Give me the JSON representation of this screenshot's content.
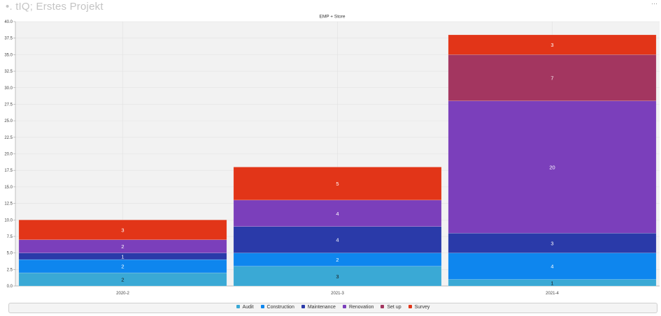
{
  "window": {
    "title": "tIQ; Erstes Projekt"
  },
  "chart_data": {
    "type": "bar",
    "stacked": true,
    "title": "EMP + Store",
    "categories": [
      "2020-2",
      "2021-3",
      "2021-4"
    ],
    "ylim": [
      0,
      40
    ],
    "yticks": [
      "0.0",
      "2.5",
      "5.0",
      "7.5",
      "10.0",
      "12.5",
      "15.0",
      "17.5",
      "20.0",
      "22.5",
      "25.0",
      "27.5",
      "30.0",
      "32.5",
      "35.0",
      "37.5",
      "40.0"
    ],
    "grid": true,
    "legend_position": "bottom",
    "series": [
      {
        "name": "Audit",
        "color": "#3aa9d5",
        "values": [
          2,
          3,
          1
        ]
      },
      {
        "name": "Construction",
        "color": "#0e86ee",
        "values": [
          2,
          2,
          4
        ]
      },
      {
        "name": "Maintenance",
        "color": "#2a3aa9",
        "values": [
          1,
          4,
          3
        ]
      },
      {
        "name": "Renovation",
        "color": "#7b3fbb",
        "values": [
          2,
          4,
          20
        ]
      },
      {
        "name": "Set up",
        "color": "#a33660",
        "values": [
          0,
          0,
          7
        ]
      },
      {
        "name": "Survey",
        "color": "#e23518",
        "values": [
          3,
          5,
          3
        ]
      }
    ],
    "label_colors": {
      "Audit": "#1a1a1a",
      "Construction": "#ffffff",
      "Maintenance": "#ffffff",
      "Renovation": "#ffffff",
      "Set up": "#ffffff",
      "Survey": "#ffffff"
    }
  }
}
